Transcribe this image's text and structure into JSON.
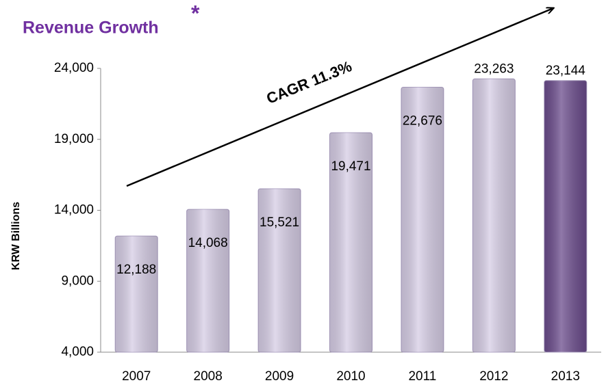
{
  "chart_data": {
    "type": "bar",
    "title": "Revenue Growth",
    "title_note": "*",
    "y_label": "KRW Billions",
    "annotation": "CAGR 11.3%",
    "categories": [
      "2007",
      "2008",
      "2009",
      "2010",
      "2011",
      "2012",
      "2013"
    ],
    "values": [
      12188,
      14068,
      15521,
      19471,
      22676,
      23263,
      23144
    ],
    "value_labels": [
      "12,188",
      "14,068",
      "15,521",
      "19,471",
      "22,676",
      "23,263",
      "23,144"
    ],
    "colors": [
      "#d6cde5",
      "#d6cde5",
      "#d6cde5",
      "#d6cde5",
      "#d6cde5",
      "#d6cde5",
      "#6b4c8c"
    ],
    "ylim": [
      4000,
      24000
    ],
    "yticks": [
      {
        "value": 4000,
        "label": "4,000"
      },
      {
        "value": 9000,
        "label": "9,000"
      },
      {
        "value": 14000,
        "label": "14,000"
      },
      {
        "value": 19000,
        "label": "19,000"
      },
      {
        "value": 24000,
        "label": "24,000"
      }
    ],
    "grid": false
  }
}
